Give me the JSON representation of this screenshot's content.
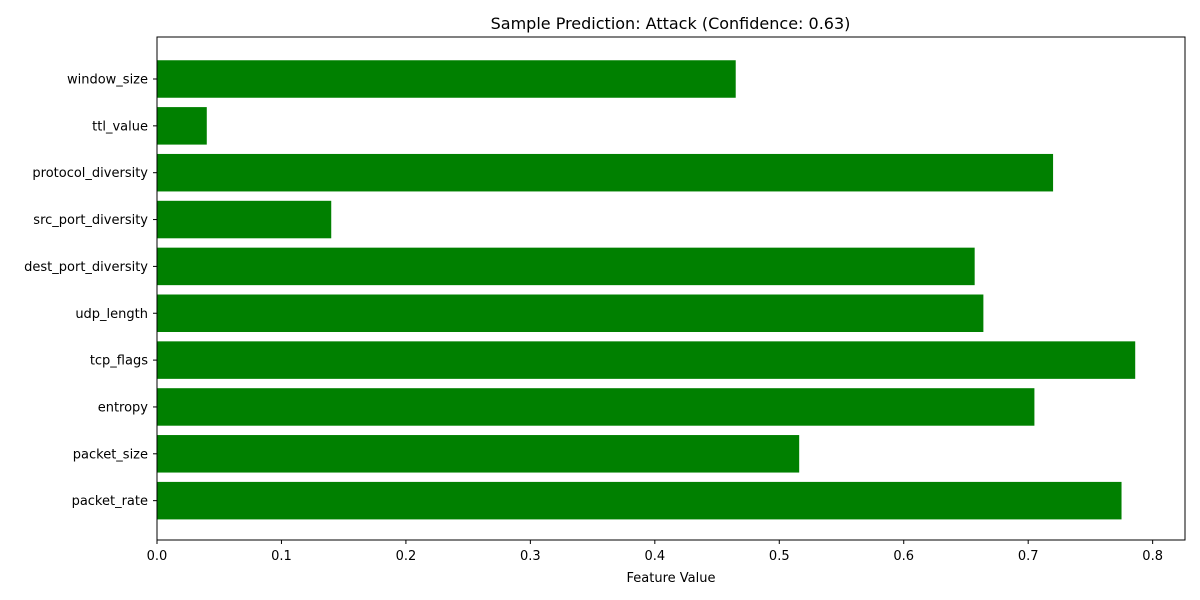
{
  "chart_data": {
    "type": "bar",
    "orientation": "horizontal",
    "title": "Sample Prediction: Attack (Confidence: 0.63)",
    "xlabel": "Feature Value",
    "ylabel": "",
    "categories": [
      "window_size",
      "ttl_value",
      "protocol_diversity",
      "src_port_diversity",
      "dest_port_diversity",
      "udp_length",
      "tcp_flags",
      "entropy",
      "packet_size",
      "packet_rate"
    ],
    "values": [
      0.465,
      0.04,
      0.72,
      0.14,
      0.657,
      0.664,
      0.786,
      0.705,
      0.516,
      0.775
    ],
    "xlim": [
      0,
      0.826
    ],
    "xticks": [
      0.0,
      0.1,
      0.2,
      0.3,
      0.4,
      0.5,
      0.6,
      0.7,
      0.8
    ],
    "xtick_labels": [
      "0.0",
      "0.1",
      "0.2",
      "0.3",
      "0.4",
      "0.5",
      "0.6",
      "0.7",
      "0.8"
    ],
    "bar_color": "#008000",
    "grid": false,
    "legend": "none"
  }
}
